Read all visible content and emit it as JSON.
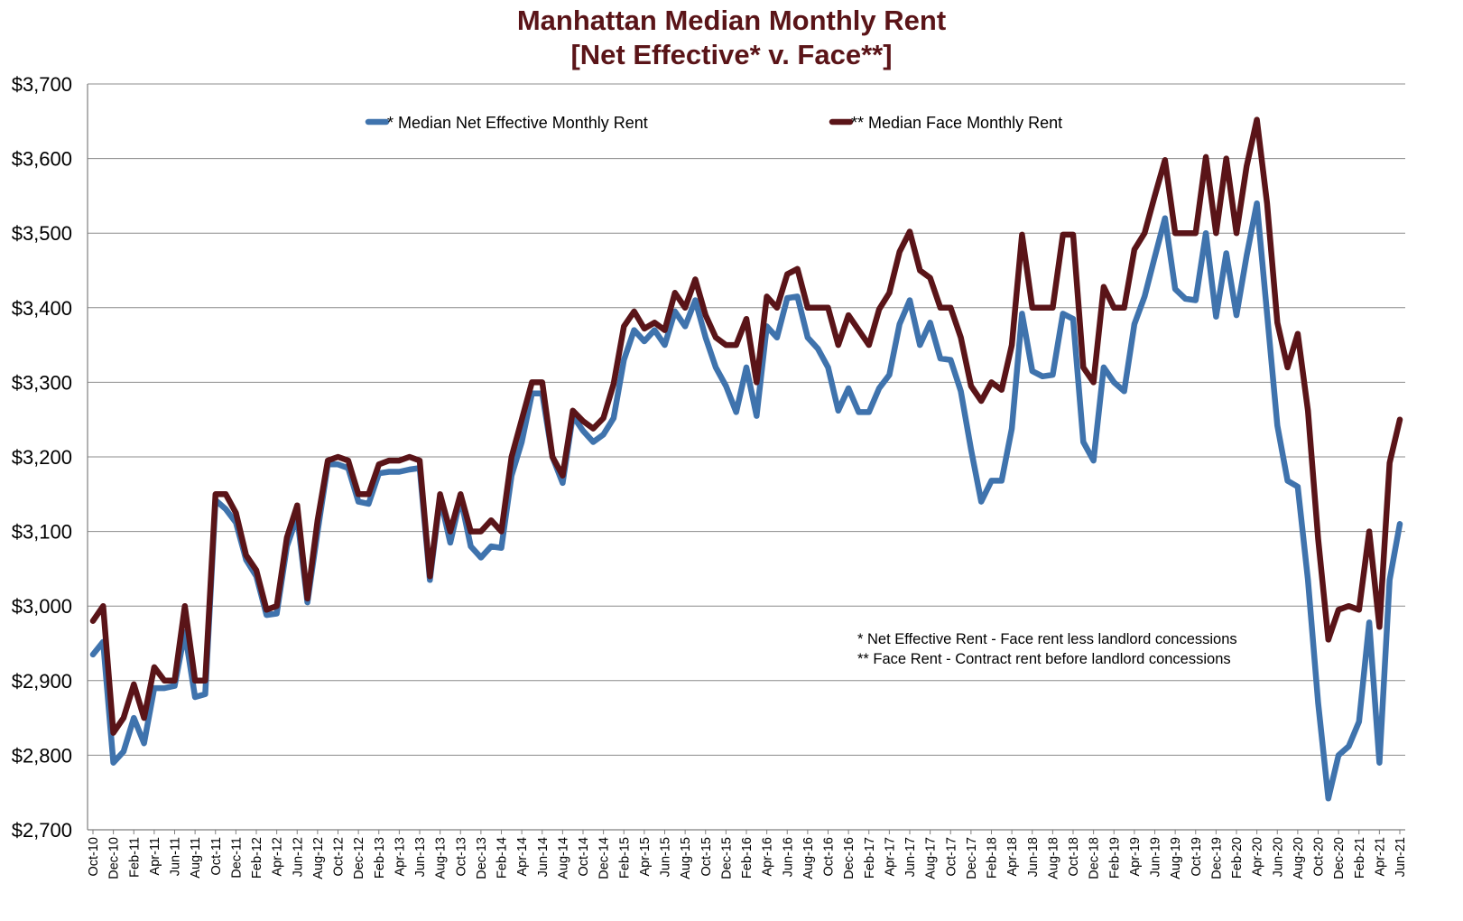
{
  "chart_data": {
    "type": "line",
    "title": "Manhattan Median Monthly Rent",
    "subtitle": "[Net Effective* v. Face**]",
    "xlabel": "",
    "ylabel": "",
    "ylim": [
      2700,
      3700
    ],
    "y_ticks": [
      "$2,700",
      "$2,800",
      "$2,900",
      "$3,000",
      "$3,100",
      "$3,200",
      "$3,300",
      "$3,400",
      "$3,500",
      "$3,600",
      "$3,700"
    ],
    "x_ticks": [
      "Oct-10",
      "Dec-10",
      "Feb-11",
      "Apr-11",
      "Jun-11",
      "Aug-11",
      "Oct-11",
      "Dec-11",
      "Feb-12",
      "Apr-12",
      "Jun-12",
      "Aug-12",
      "Oct-12",
      "Dec-12",
      "Feb-13",
      "Apr-13",
      "Jun-13",
      "Aug-13",
      "Oct-13",
      "Dec-13",
      "Feb-14",
      "Apr-14",
      "Jun-14",
      "Aug-14",
      "Oct-14",
      "Dec-14",
      "Feb-15",
      "Apr-15",
      "Jun-15",
      "Aug-15",
      "Oct-15",
      "Dec-15",
      "Feb-16",
      "Apr-16",
      "Jun-16",
      "Aug-16",
      "Oct-16",
      "Dec-16",
      "Feb-17",
      "Apr-17",
      "Jun-17",
      "Aug-17",
      "Oct-17",
      "Dec-17",
      "Feb-18",
      "Apr-18",
      "Jun-18",
      "Aug-18",
      "Oct-18",
      "Dec-18",
      "Feb-19",
      "Apr-19",
      "Jun-19",
      "Aug-19",
      "Oct-19",
      "Dec-19",
      "Feb-20",
      "Apr-20",
      "Jun-20",
      "Aug-20",
      "Oct-20",
      "Dec-20",
      "Feb-21",
      "Apr-21",
      "Jun-21"
    ],
    "grid": true,
    "legend_position": "top",
    "series": [
      {
        "name": "* Median Net Effective Monthly Rent",
        "color": "#3f73ad",
        "values": [
          2935,
          2952,
          2790,
          2805,
          2850,
          2816,
          2890,
          2890,
          2893,
          2965,
          2878,
          2882,
          3142,
          3130,
          3112,
          3062,
          3040,
          2988,
          2990,
          3080,
          3120,
          3005,
          3100,
          3190,
          3190,
          3185,
          3140,
          3137,
          3178,
          3180,
          3180,
          3183,
          3185,
          3035,
          3145,
          3085,
          3145,
          3080,
          3065,
          3080,
          3078,
          3175,
          3220,
          3285,
          3285,
          3200,
          3165,
          3255,
          3235,
          3220,
          3230,
          3252,
          3330,
          3370,
          3355,
          3370,
          3350,
          3395,
          3375,
          3410,
          3360,
          3320,
          3295,
          3260,
          3320,
          3255,
          3375,
          3360,
          3413,
          3415,
          3360,
          3345,
          3320,
          3262,
          3292,
          3260,
          3260,
          3292,
          3310,
          3378,
          3410,
          3350,
          3380,
          3332,
          3330,
          3288,
          3210,
          3140,
          3168,
          3168,
          3238,
          3392,
          3315,
          3308,
          3310,
          3392,
          3385,
          3220,
          3195,
          3320,
          3300,
          3288,
          3378,
          3415,
          3468,
          3520,
          3425,
          3412,
          3410,
          3500,
          3388,
          3473,
          3390,
          3470,
          3540,
          3392,
          3242,
          3168,
          3160,
          3035,
          2870,
          2742,
          2800,
          2812,
          2845,
          2978,
          2790,
          3035,
          3110
        ]
      },
      {
        "name": "** Median Face Monthly Rent",
        "color": "#5a1418",
        "values": [
          2980,
          3000,
          2830,
          2850,
          2895,
          2850,
          2918,
          2900,
          2900,
          3000,
          2900,
          2900,
          3150,
          3150,
          3125,
          3068,
          3048,
          2995,
          3000,
          3092,
          3135,
          3010,
          3115,
          3195,
          3200,
          3195,
          3150,
          3150,
          3190,
          3195,
          3195,
          3200,
          3195,
          3040,
          3150,
          3100,
          3150,
          3100,
          3100,
          3115,
          3100,
          3200,
          3250,
          3300,
          3300,
          3200,
          3175,
          3262,
          3248,
          3238,
          3252,
          3298,
          3375,
          3395,
          3372,
          3380,
          3370,
          3420,
          3400,
          3438,
          3390,
          3360,
          3350,
          3350,
          3385,
          3300,
          3415,
          3400,
          3445,
          3452,
          3400,
          3400,
          3400,
          3350,
          3390,
          3370,
          3350,
          3398,
          3420,
          3475,
          3502,
          3450,
          3440,
          3400,
          3400,
          3360,
          3295,
          3275,
          3300,
          3290,
          3350,
          3498,
          3400,
          3400,
          3400,
          3498,
          3498,
          3320,
          3300,
          3428,
          3400,
          3400,
          3478,
          3500,
          3550,
          3598,
          3500,
          3500,
          3500,
          3602,
          3500,
          3600,
          3500,
          3590,
          3652,
          3540,
          3380,
          3320,
          3365,
          3262,
          3090,
          2955,
          2995,
          3000,
          2995,
          3100,
          2972,
          3192,
          3250
        ]
      }
    ],
    "notes": [
      "* Net Effective Rent - Face rent less landlord concessions",
      "** Face Rent - Contract rent before landlord concessions"
    ]
  }
}
